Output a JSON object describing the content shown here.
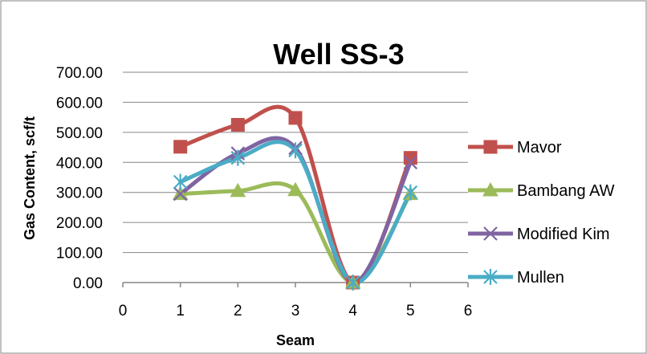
{
  "chart_data": {
    "type": "line",
    "title": "Well SS-3",
    "xlabel": "Seam",
    "ylabel": "Gas Content, scf/t",
    "xlim": [
      0,
      6
    ],
    "ylim": [
      0,
      700
    ],
    "x_ticks": [
      "0",
      "1",
      "2",
      "3",
      "4",
      "5",
      "6"
    ],
    "y_ticks": [
      "0.00",
      "100.00",
      "200.00",
      "300.00",
      "400.00",
      "500.00",
      "600.00",
      "700.00"
    ],
    "grid": "horizontal",
    "legend_position": "right",
    "smooth": true,
    "x": [
      1,
      2,
      3,
      4,
      5
    ],
    "series": [
      {
        "name": "Mavor",
        "values": [
          452,
          525,
          548,
          0,
          415
        ],
        "color": "#C0504D",
        "marker": "square"
      },
      {
        "name": "Bambang AW",
        "values": [
          295,
          305,
          308,
          0,
          295
        ],
        "color": "#9BBB59",
        "marker": "triangle"
      },
      {
        "name": "Modified Kim",
        "values": [
          295,
          430,
          448,
          0,
          400
        ],
        "color": "#8064A2",
        "marker": "x"
      },
      {
        "name": "Mullen",
        "values": [
          335,
          415,
          440,
          0,
          300
        ],
        "color": "#4BACC6",
        "marker": "star"
      }
    ]
  }
}
